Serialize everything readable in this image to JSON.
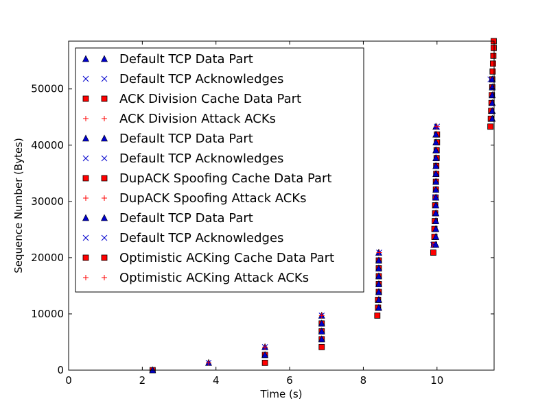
{
  "chart_data": {
    "type": "scatter",
    "title": "",
    "xlabel": "Time (s)",
    "ylabel": "Sequence Number (Bytes)",
    "xlim": [
      0,
      11.55
    ],
    "ylim": [
      0,
      58500
    ],
    "xticks": [
      0,
      2,
      4,
      6,
      8,
      10
    ],
    "yticks": [
      0,
      10000,
      20000,
      30000,
      40000,
      50000
    ],
    "grid": false,
    "legend_position": "top-left",
    "colors": {
      "blue": "#0000cc",
      "red": "#ff0000",
      "red_stroke": "#000000"
    },
    "series": [
      {
        "name": "Default TCP Data Part",
        "marker": "triangle",
        "color": "#0000cc",
        "points": [
          [
            2.28,
            0
          ],
          [
            3.8,
            1300
          ],
          [
            5.33,
            2700
          ],
          [
            5.33,
            4100
          ],
          [
            6.87,
            5500
          ],
          [
            6.87,
            6900
          ],
          [
            6.87,
            8300
          ],
          [
            6.87,
            9700
          ],
          [
            8.42,
            11100
          ],
          [
            8.42,
            12500
          ],
          [
            8.42,
            13900
          ],
          [
            8.42,
            15300
          ],
          [
            8.42,
            16700
          ],
          [
            8.42,
            18100
          ],
          [
            8.42,
            19500
          ],
          [
            8.42,
            20900
          ],
          [
            9.97,
            22300
          ],
          [
            9.97,
            23700
          ],
          [
            9.97,
            25100
          ],
          [
            9.97,
            26500
          ],
          [
            9.97,
            27900
          ],
          [
            9.97,
            29300
          ],
          [
            9.97,
            30700
          ],
          [
            9.97,
            32100
          ],
          [
            9.97,
            33500
          ],
          [
            9.97,
            34900
          ],
          [
            9.97,
            36300
          ],
          [
            9.97,
            37700
          ],
          [
            9.97,
            39100
          ],
          [
            9.97,
            40500
          ],
          [
            9.97,
            41900
          ],
          [
            9.97,
            43300
          ],
          [
            11.5,
            44700
          ],
          [
            11.5,
            46100
          ],
          [
            11.5,
            47500
          ],
          [
            11.5,
            48900
          ],
          [
            11.5,
            50300
          ],
          [
            11.5,
            51700
          ]
        ]
      },
      {
        "name": "Default TCP Acknowledges",
        "marker": "x",
        "color": "#0000cc",
        "points": [
          [
            3.8,
            1300
          ],
          [
            5.33,
            4100
          ],
          [
            6.87,
            9700
          ],
          [
            8.43,
            20900
          ],
          [
            9.9,
            22300
          ],
          [
            9.95,
            30700
          ],
          [
            10.0,
            43300
          ],
          [
            11.45,
            51700
          ]
        ]
      },
      {
        "name": "ACK Division Cache Data Part",
        "marker": "square",
        "color": "#ff0000",
        "points": [
          [
            2.28,
            0
          ],
          [
            5.33,
            1300
          ],
          [
            5.33,
            2700
          ],
          [
            6.87,
            4100
          ],
          [
            6.87,
            5500
          ],
          [
            6.87,
            6900
          ],
          [
            6.87,
            8300
          ],
          [
            8.38,
            9700
          ],
          [
            8.4,
            11100
          ],
          [
            8.4,
            12500
          ],
          [
            8.42,
            13900
          ],
          [
            8.42,
            15300
          ],
          [
            8.42,
            16700
          ],
          [
            8.42,
            18100
          ],
          [
            8.42,
            19500
          ],
          [
            9.9,
            20900
          ],
          [
            9.92,
            22300
          ],
          [
            9.93,
            23700
          ],
          [
            9.93,
            25100
          ],
          [
            9.94,
            26500
          ],
          [
            9.95,
            27900
          ],
          [
            9.95,
            29300
          ],
          [
            9.96,
            30700
          ],
          [
            9.97,
            32100
          ],
          [
            9.97,
            33500
          ],
          [
            9.98,
            34900
          ],
          [
            9.98,
            36300
          ],
          [
            9.99,
            37700
          ],
          [
            9.99,
            39100
          ],
          [
            10.0,
            40500
          ],
          [
            10.0,
            41900
          ],
          [
            11.45,
            43300
          ],
          [
            11.46,
            44700
          ],
          [
            11.47,
            46100
          ],
          [
            11.48,
            47500
          ],
          [
            11.49,
            48900
          ],
          [
            11.5,
            50300
          ],
          [
            11.5,
            51700
          ],
          [
            11.51,
            53100
          ],
          [
            11.52,
            54500
          ],
          [
            11.53,
            55900
          ],
          [
            11.54,
            57300
          ],
          [
            11.54,
            58500
          ]
        ]
      },
      {
        "name": "ACK Division Attack ACKs",
        "marker": "plus",
        "color": "#ff0000",
        "points": [
          [
            3.8,
            1300
          ],
          [
            5.33,
            4100
          ],
          [
            6.87,
            9700
          ],
          [
            8.43,
            20900
          ],
          [
            10.0,
            43300
          ]
        ]
      },
      {
        "name": "Default TCP Data Part",
        "marker": "triangle",
        "color": "#0000cc",
        "points": []
      },
      {
        "name": "Default TCP Acknowledges",
        "marker": "x",
        "color": "#0000cc",
        "points": []
      },
      {
        "name": "DupACK Spoofing Cache Data Part",
        "marker": "square",
        "color": "#ff0000",
        "points": []
      },
      {
        "name": "DupACK Spoofing Attack ACKs",
        "marker": "plus",
        "color": "#ff0000",
        "points": []
      },
      {
        "name": "Default TCP Data Part",
        "marker": "triangle",
        "color": "#0000cc",
        "points": []
      },
      {
        "name": "Default TCP Acknowledges",
        "marker": "x",
        "color": "#0000cc",
        "points": []
      },
      {
        "name": "Optimistic ACKing Cache Data Part",
        "marker": "square",
        "color": "#ff0000",
        "points": []
      },
      {
        "name": "Optimistic ACKing Attack ACKs",
        "marker": "plus",
        "color": "#ff0000",
        "points": []
      }
    ]
  }
}
